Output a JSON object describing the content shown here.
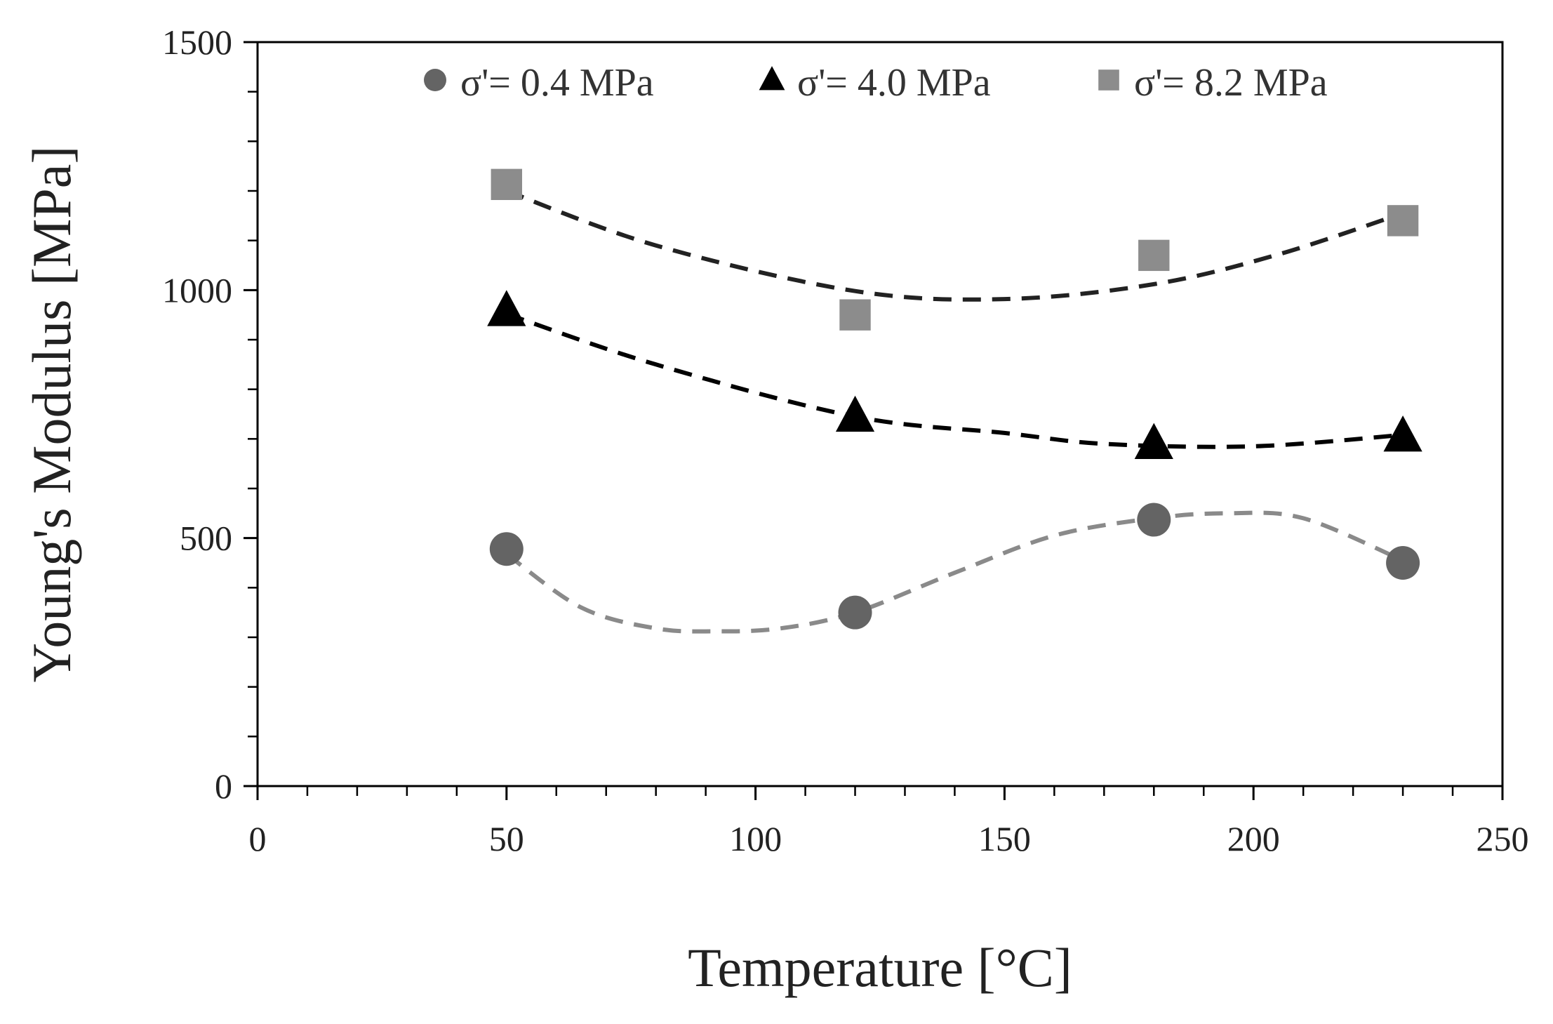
{
  "chart_data": {
    "type": "scatter",
    "title": "",
    "xlabel": "Temperature [°C]",
    "ylabel": "Young's  Modulus [MPa]",
    "xlim": [
      0,
      250
    ],
    "ylim": [
      0,
      1500
    ],
    "x_major_ticks": [
      0,
      50,
      100,
      150,
      200,
      250
    ],
    "x_tick_labels": [
      "0",
      "50",
      "100",
      "150",
      "200",
      "250"
    ],
    "x_minor_step": 10,
    "y_major_ticks": [
      0,
      500,
      1000,
      1500
    ],
    "y_tick_labels": [
      "0",
      "500",
      "1000",
      "1500"
    ],
    "y_minor_step": 100,
    "grid": false,
    "legend_position": "top",
    "series": [
      {
        "name": "σ'= 0.4 MPa",
        "marker": "circle",
        "color": "#646464",
        "trend_color": "#8a8a8a",
        "x": [
          50,
          120,
          180,
          230
        ],
        "values": [
          478,
          350,
          537,
          450
        ],
        "trendline": {
          "x": [
            50,
            65,
            80,
            92,
            105,
            120,
            140,
            160,
            180,
            195,
            210,
            230
          ],
          "y": [
            468,
            360,
            318,
            312,
            318,
            350,
            430,
            505,
            540,
            550,
            540,
            455
          ]
        }
      },
      {
        "name": "σ'= 4.0 MPa",
        "marker": "triangle",
        "color": "#000000",
        "trend_color": "#000000",
        "x": [
          50,
          120,
          180,
          230
        ],
        "values": [
          958,
          745,
          690,
          705
        ],
        "trendline": {
          "x": [
            50,
            80,
            120,
            150,
            170,
            200,
            230
          ],
          "y": [
            952,
            850,
            745,
            712,
            690,
            685,
            708
          ]
        }
      },
      {
        "name": "σ'= 8.2 MPa",
        "marker": "square",
        "color": "#8c8c8c",
        "trend_color": "#222222",
        "x": [
          50,
          120,
          180,
          230
        ],
        "values": [
          1213,
          950,
          1070,
          1140
        ],
        "trendline": {
          "x": [
            50,
            80,
            120,
            150,
            180,
            205,
            230
          ],
          "y": [
            1200,
            1090,
            998,
            982,
            1012,
            1072,
            1155
          ]
        }
      }
    ]
  }
}
